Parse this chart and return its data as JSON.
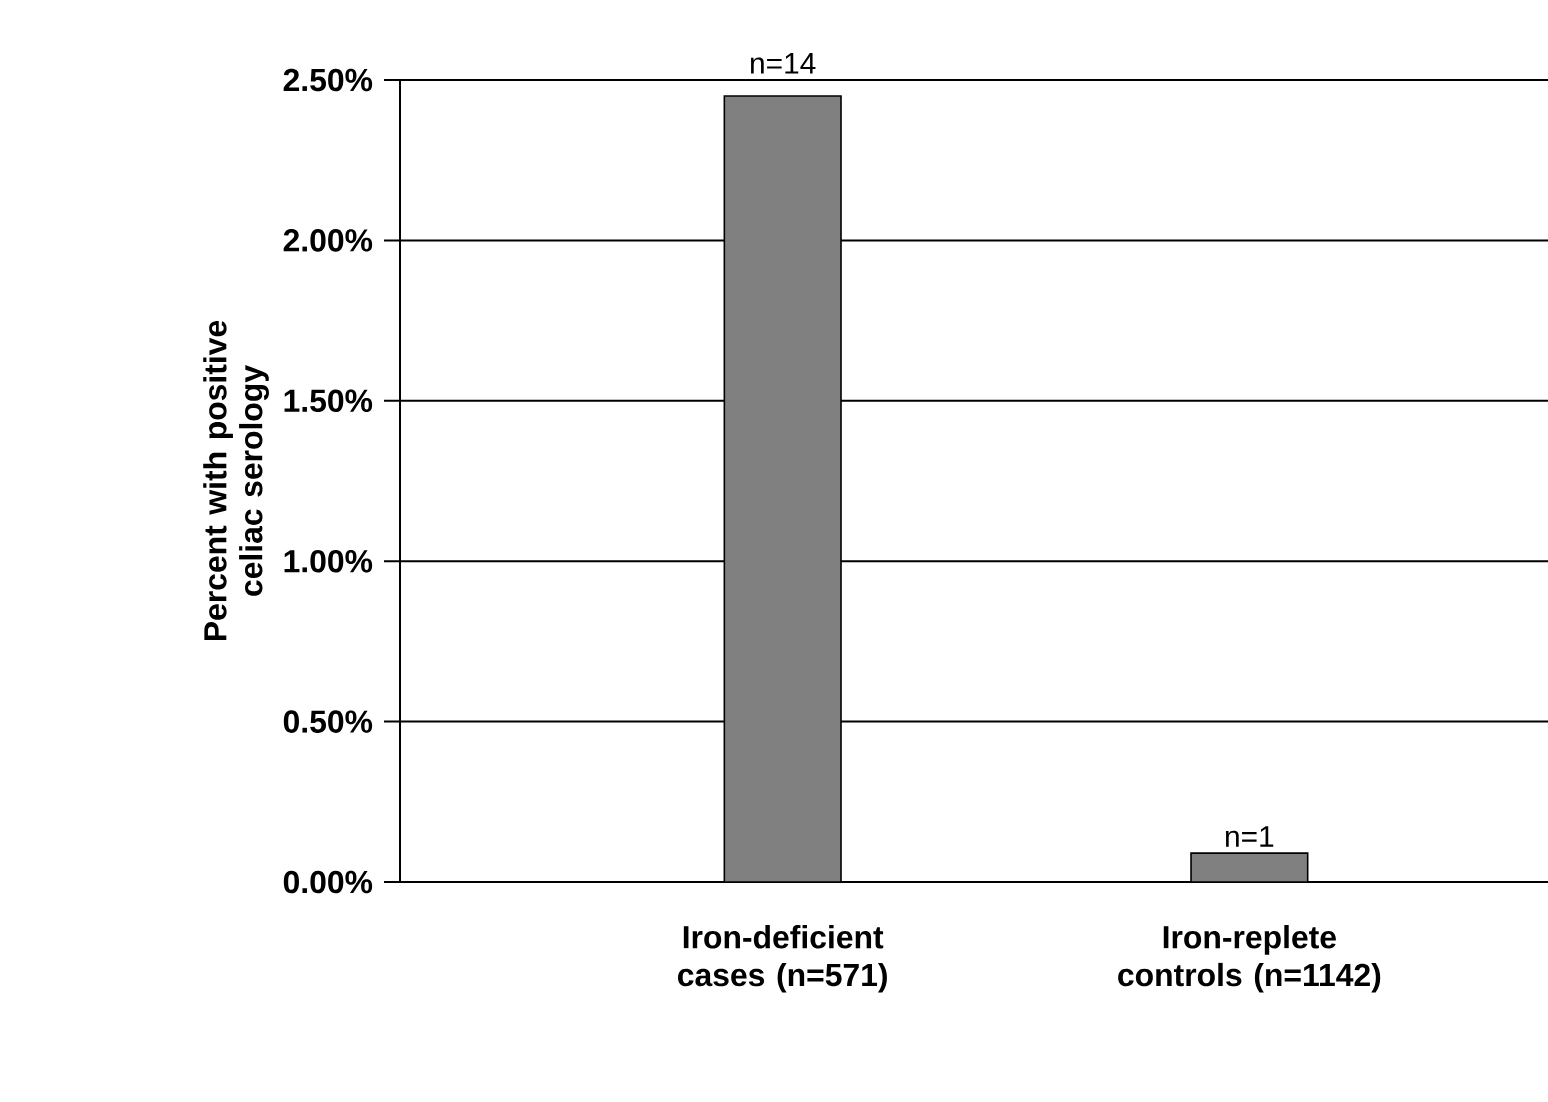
{
  "chart_data": {
    "type": "bar",
    "ylabel": "Percent with positive celiac serology",
    "categories": [
      "Iron-deficient cases (n=571)",
      "Iron-replete controls (n=1142)"
    ],
    "values": [
      2.45,
      0.09
    ],
    "annotations": [
      {
        "text": "n=14",
        "x": "Iron-deficient cases (n=571)",
        "y": 2.45
      },
      {
        "text": "n=1",
        "x": "Iron-replete controls (n=1142)",
        "y": 0.09
      }
    ],
    "color": "#808080",
    "ylim": [
      0,
      2.5
    ],
    "yticks": [
      {
        "value": 0,
        "label": "0.00%"
      },
      {
        "value": 0.5,
        "label": "0.50%"
      },
      {
        "value": 1,
        "label": "1.00%"
      },
      {
        "value": 1.5,
        "label": "1.50%"
      },
      {
        "value": 2,
        "label": "2.00%"
      },
      {
        "value": 2.5,
        "label": "2.50%"
      }
    ],
    "grid": "y"
  }
}
